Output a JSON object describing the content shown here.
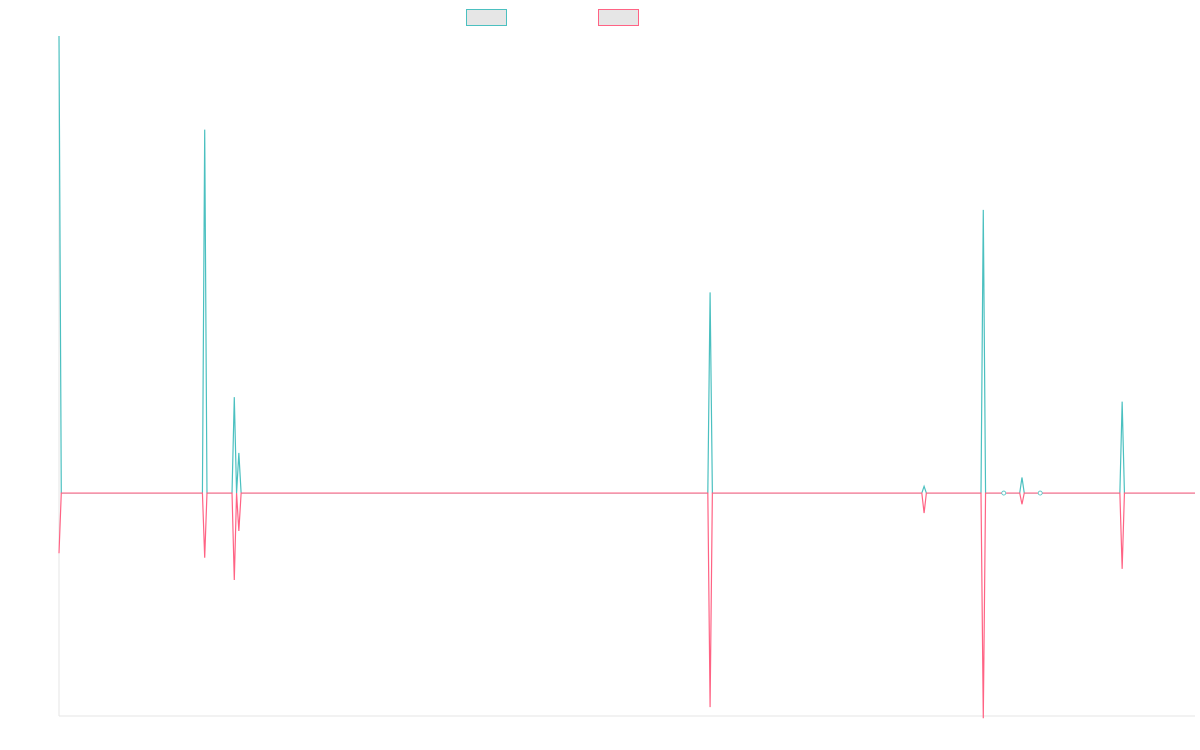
{
  "colors": {
    "series_a": "#4bc0c0",
    "series_b": "#ff6384",
    "swatch_fill": "#e6e6e6",
    "axis": "#e5e5e5"
  },
  "legend": {
    "position": "top-center",
    "items": [
      {
        "label": "",
        "color_key": "series_a"
      },
      {
        "label": "",
        "color_key": "series_b"
      }
    ]
  },
  "chart_data": {
    "type": "line",
    "title": "",
    "xlabel": "",
    "ylabel": "",
    "grid": false,
    "ylim": [
      -100,
      205
    ],
    "x": [
      0,
      1,
      2,
      3,
      4,
      5,
      6,
      7,
      8,
      9,
      10,
      11,
      12,
      13,
      14,
      15,
      16,
      17,
      18,
      19,
      20,
      21,
      22,
      23,
      24,
      25,
      26,
      27,
      28,
      29,
      30,
      31,
      32,
      33,
      34,
      35,
      36,
      37,
      38,
      39,
      40,
      41,
      42,
      43,
      44,
      45,
      46,
      47,
      48,
      49,
      50,
      51,
      52,
      53,
      54,
      55,
      56,
      57,
      58,
      59,
      60,
      61,
      62,
      63,
      64,
      65,
      66,
      67,
      68,
      69,
      70,
      71,
      72,
      73,
      74,
      75,
      76,
      77,
      78,
      79,
      80,
      81,
      82,
      83,
      84,
      85,
      86,
      87,
      88,
      89,
      90,
      91,
      92,
      93,
      94,
      95,
      96,
      97,
      98,
      99,
      100,
      101,
      102,
      103,
      104,
      105,
      106,
      107,
      108,
      109,
      110,
      111,
      112,
      113,
      114,
      115,
      116,
      117,
      118,
      119,
      120,
      121,
      122,
      123,
      124,
      125,
      126,
      127,
      128,
      129,
      130,
      131,
      132,
      133,
      134,
      135,
      136,
      137,
      138,
      139,
      140,
      141,
      142,
      143,
      144,
      145,
      146,
      147,
      148,
      149,
      150,
      151,
      152,
      153,
      154,
      155,
      156,
      157,
      158,
      159,
      160,
      161,
      162,
      163,
      164,
      165,
      166,
      167,
      168,
      169,
      170,
      171,
      172,
      173,
      174,
      175,
      176,
      177,
      178,
      179,
      180,
      181,
      182,
      183,
      184,
      185,
      186,
      187,
      188,
      189,
      190,
      191,
      192,
      193,
      194,
      195,
      196,
      197,
      198,
      199,
      200,
      201,
      202,
      203,
      204,
      205,
      206,
      207,
      208,
      209,
      210,
      211,
      212,
      213,
      214,
      215,
      216,
      217,
      218,
      219,
      220,
      221,
      222,
      223,
      224,
      225,
      226,
      227,
      228,
      229,
      230,
      231,
      232,
      233,
      234,
      235,
      236,
      237,
      238,
      239,
      240,
      241,
      242,
      243,
      244,
      245,
      246,
      247,
      248,
      249,
      250,
      251,
      252,
      253,
      254,
      255,
      256,
      257,
      258,
      259,
      260,
      261,
      262,
      263,
      264,
      265,
      266,
      267,
      268,
      269,
      270,
      271,
      272,
      273,
      274,
      275,
      276,
      277,
      278,
      279,
      280,
      281,
      282,
      283,
      284,
      285,
      286,
      287,
      288,
      289,
      290,
      291,
      292,
      293,
      294,
      295,
      296,
      297,
      298,
      299,
      300,
      301,
      302,
      303,
      304,
      305,
      306,
      307,
      308,
      309,
      310,
      311,
      312,
      313,
      314,
      315,
      316,
      317,
      318,
      319,
      320,
      321,
      322,
      323,
      324,
      325,
      326,
      327,
      328,
      329,
      330,
      331,
      332,
      333,
      334,
      335,
      336,
      337,
      338,
      339,
      340,
      341,
      342,
      343,
      344,
      345,
      346,
      347,
      348,
      349,
      350,
      351,
      352,
      353,
      354,
      355,
      356,
      357,
      358,
      359,
      360,
      361,
      362,
      363,
      364,
      365,
      366,
      367,
      368,
      369,
      370,
      371,
      372,
      373,
      374,
      375,
      376,
      377,
      378,
      379,
      380,
      381,
      382,
      383,
      384,
      385,
      386,
      387,
      388,
      389,
      390,
      391,
      392,
      393,
      394,
      395,
      396,
      397,
      398,
      399,
      400,
      401,
      402,
      403,
      404,
      405,
      406,
      407,
      408,
      409,
      410,
      411,
      412,
      413,
      414,
      415,
      416,
      417,
      418,
      419,
      420,
      421,
      422,
      423,
      424,
      425,
      426,
      427,
      428,
      429,
      430,
      431,
      432,
      433,
      434,
      435,
      436,
      437,
      438,
      439,
      440,
      441,
      442,
      443,
      444,
      445,
      446,
      447,
      448,
      449,
      450,
      451,
      452,
      453,
      454,
      455,
      456,
      457,
      458,
      459,
      460,
      461,
      462,
      463,
      464,
      465,
      466,
      467,
      468,
      469,
      470,
      471,
      472,
      473,
      474,
      475,
      476,
      477,
      478,
      479,
      480,
      481,
      482,
      483,
      484,
      485,
      486,
      487,
      488,
      489,
      490,
      491,
      492,
      493,
      494,
      495,
      496,
      497,
      498,
      499
    ],
    "xlim": [
      0,
      499
    ],
    "series": [
      {
        "color_key": "series_a",
        "points": [
          [
            0,
            205
          ],
          [
            1,
            0
          ],
          [
            63,
            0
          ],
          [
            64,
            163
          ],
          [
            65,
            0
          ],
          [
            76,
            0
          ],
          [
            77,
            43
          ],
          [
            78,
            0
          ],
          [
            79,
            18
          ],
          [
            80,
            0
          ],
          [
            285,
            0
          ],
          [
            286,
            90
          ],
          [
            287,
            0
          ],
          [
            379,
            0
          ],
          [
            380,
            3
          ],
          [
            381,
            0
          ],
          [
            405,
            0
          ],
          [
            406,
            127
          ],
          [
            407,
            0
          ],
          [
            422,
            0
          ],
          [
            423,
            7
          ],
          [
            424,
            0
          ],
          [
            466,
            0
          ],
          [
            467,
            41
          ],
          [
            468,
            0
          ],
          [
            499,
            0
          ]
        ]
      },
      {
        "color_key": "series_b",
        "points": [
          [
            0,
            -27
          ],
          [
            1,
            0
          ],
          [
            63,
            0
          ],
          [
            64,
            -29
          ],
          [
            65,
            0
          ],
          [
            76,
            0
          ],
          [
            77,
            -39
          ],
          [
            78,
            0
          ],
          [
            79,
            -17
          ],
          [
            80,
            0
          ],
          [
            285,
            0
          ],
          [
            286,
            -96
          ],
          [
            287,
            0
          ],
          [
            379,
            0
          ],
          [
            380,
            -9
          ],
          [
            381,
            0
          ],
          [
            405,
            0
          ],
          [
            406,
            -101
          ],
          [
            407,
            0
          ],
          [
            422,
            0
          ],
          [
            423,
            -5
          ],
          [
            424,
            0
          ],
          [
            466,
            0
          ],
          [
            467,
            -34
          ],
          [
            468,
            0
          ],
          [
            499,
            0
          ]
        ]
      }
    ],
    "markers": [
      {
        "x": 415,
        "y": 0
      },
      {
        "x": 431,
        "y": 0
      }
    ]
  }
}
